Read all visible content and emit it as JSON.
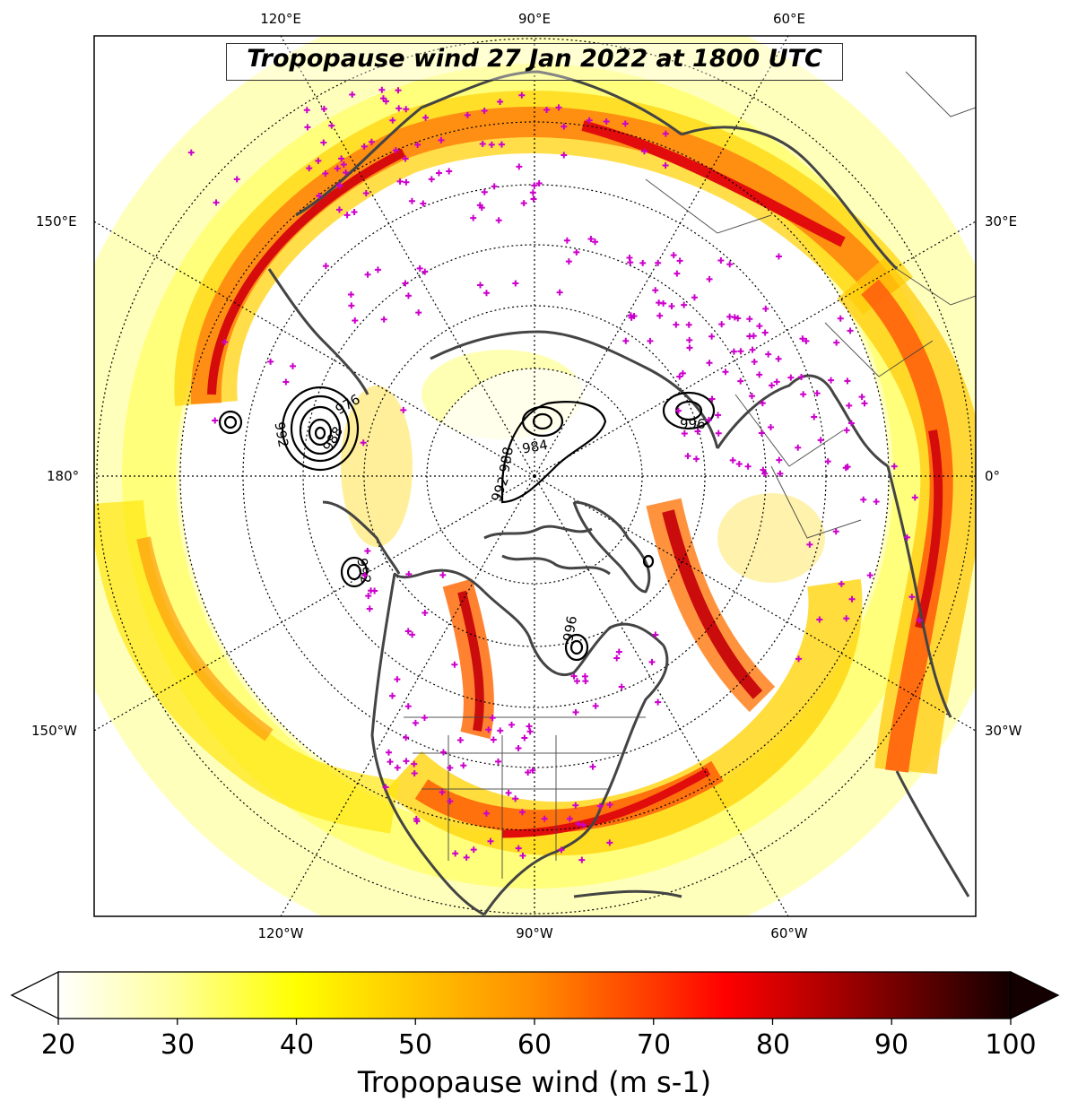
{
  "title": "Tropopause wind 27 Jan 2022 at 1800 UTC",
  "longitude_labels": {
    "top": [
      "120°E",
      "90°E",
      "60°E"
    ],
    "bottom": [
      "120°W",
      "90°W",
      "60°W"
    ],
    "left": [
      "150°E",
      "180°",
      "150°W"
    ],
    "right": [
      "30°E",
      "0°",
      "30°W"
    ]
  },
  "pressure_contours": [
    "992",
    "976",
    "988",
    "984",
    "988",
    "992",
    "996",
    "992",
    "996"
  ],
  "colorbar": {
    "label": "Tropopause wind (m s-1)",
    "ticks": [
      "20",
      "30",
      "40",
      "50",
      "60",
      "70",
      "80",
      "90",
      "100"
    ],
    "min": 20,
    "max": 100,
    "extend": "both",
    "colormap": [
      "#ffffff",
      "#ffff8c",
      "#ffff00",
      "#ffd200",
      "#ff9600",
      "#ff5000",
      "#ff0000",
      "#c80000",
      "#780000",
      "#140000"
    ]
  },
  "colors": {
    "coastline": "#444444",
    "station_marker": "#cc00cc",
    "contour": "#000000",
    "gridline": "#000000"
  },
  "features": {
    "projection": "north-polar-stereographic",
    "station_marker_symbol": "+",
    "graticule": "dotted"
  }
}
